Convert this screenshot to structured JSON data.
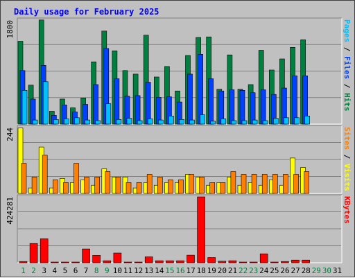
{
  "chart_data": {
    "title": "Daily usage for February 2025",
    "type": "bar",
    "x": [
      "1",
      "2",
      "3",
      "4",
      "5",
      "6",
      "7",
      "8",
      "9",
      "10",
      "11",
      "12",
      "13",
      "14",
      "15",
      "16",
      "17",
      "18",
      "19",
      "20",
      "21",
      "22",
      "23",
      "24",
      "25",
      "26",
      "27",
      "28",
      "29",
      "30",
      "31"
    ],
    "weekend_days": [
      1,
      2,
      8,
      9,
      15,
      16,
      22,
      23,
      29,
      30
    ],
    "panels": [
      {
        "name": "hits_files_pages",
        "ymax_label": "1800",
        "ylim": [
          0,
          1800
        ],
        "right_label_parts": [
          {
            "text": "Pages",
            "color": "#00c0ff"
          },
          {
            "text": " / ",
            "color": "#000000"
          },
          {
            "text": "Files",
            "color": "#0040ff"
          },
          {
            "text": " / ",
            "color": "#000000"
          },
          {
            "text": "Hits",
            "color": "#008040"
          }
        ],
        "series": [
          {
            "name": "Hits",
            "color": "#008040",
            "values": [
              1425,
              670,
              1790,
              220,
              430,
              280,
              450,
              1070,
              1600,
              1260,
              920,
              860,
              1530,
              810,
              990,
              570,
              1180,
              1490,
              1500,
              600,
              1190,
              600,
              680,
              1270,
              930,
              1120,
              1320,
              1450,
              0,
              0,
              0
            ]
          },
          {
            "name": "Files",
            "color": "#0040ff",
            "values": [
              920,
              430,
              1010,
              150,
              330,
              210,
              340,
              680,
              1300,
              780,
              480,
              490,
              720,
              460,
              470,
              380,
              860,
              1200,
              780,
              570,
              590,
              580,
              540,
              590,
              510,
              620,
              830,
              830,
              0,
              0,
              0
            ]
          },
          {
            "name": "Pages",
            "color": "#00c0ff",
            "values": [
              580,
              70,
              730,
              80,
              90,
              110,
              70,
              60,
              350,
              80,
              100,
              60,
              90,
              70,
              140,
              80,
              70,
              160,
              50,
              90,
              60,
              60,
              70,
              60,
              100,
              110,
              110,
              140,
              0,
              0,
              0
            ]
          }
        ]
      },
      {
        "name": "sites_visits",
        "ymax_label": "244",
        "ylim": [
          0,
          244
        ],
        "right_label_parts": [
          {
            "text": "Sites",
            "color": "#ff8000"
          },
          {
            "text": " / ",
            "color": "#000000"
          },
          {
            "text": "Visits",
            "color": "#ffff00"
          }
        ],
        "series": [
          {
            "name": "Visits",
            "color": "#ffff00",
            "values": [
              240,
              20,
              170,
              20,
              55,
              40,
              50,
              30,
              90,
              60,
              60,
              20,
              40,
              30,
              40,
              40,
              70,
              60,
              30,
              40,
              60,
              30,
              40,
              30,
              50,
              30,
              130,
              95,
              0,
              0,
              0
            ]
          },
          {
            "name": "Sites",
            "color": "#ff8000",
            "values": [
              110,
              60,
              140,
              50,
              40,
              110,
              60,
              60,
              80,
              60,
              40,
              40,
              70,
              60,
              50,
              50,
              70,
              60,
              40,
              40,
              80,
              70,
              70,
              70,
              70,
              70,
              70,
              80,
              0,
              0,
              0
            ]
          }
        ]
      },
      {
        "name": "kbytes",
        "ymax_label": "424281",
        "ylim": [
          0,
          424281
        ],
        "right_label_parts": [
          {
            "text": "KBytes",
            "color": "#ff0000"
          }
        ],
        "series": [
          {
            "name": "KBytes",
            "color": "#ff0000",
            "values": [
              8000,
              123000,
              153000,
              2000,
              3000,
              3000,
              88000,
              47000,
              13000,
              62000,
              4000,
              4000,
              38000,
              13000,
              13000,
              13000,
              48000,
              420000,
              33000,
              10000,
              13000,
              3000,
              2000,
              57000,
              3000,
              8000,
              17000,
              17000,
              0,
              0,
              0
            ]
          }
        ]
      }
    ]
  }
}
